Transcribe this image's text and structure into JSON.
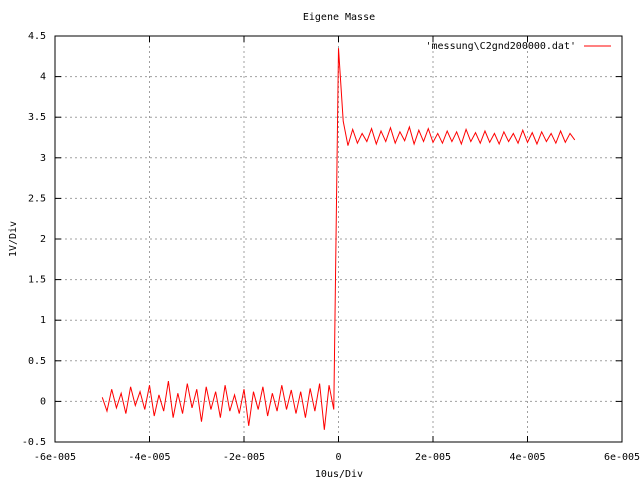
{
  "chart_data": {
    "type": "line",
    "title": "Eigene Masse",
    "xlabel": "10us/Div",
    "ylabel": "1V/Div",
    "x": [
      -5e-05,
      -4.9e-05,
      -4.8e-05,
      -4.7e-05,
      -4.6e-05,
      -4.5e-05,
      -4.4e-05,
      -4.3e-05,
      -4.2e-05,
      -4.1e-05,
      -4e-05,
      -3.9e-05,
      -3.8e-05,
      -3.7e-05,
      -3.6e-05,
      -3.5e-05,
      -3.4e-05,
      -3.3e-05,
      -3.2e-05,
      -3.1e-05,
      -3e-05,
      -2.9e-05,
      -2.8e-05,
      -2.7e-05,
      -2.6e-05,
      -2.5e-05,
      -2.4e-05,
      -2.3e-05,
      -2.2e-05,
      -2.1e-05,
      -2e-05,
      -1.9e-05,
      -1.8e-05,
      -1.7e-05,
      -1.6e-05,
      -1.5e-05,
      -1.4e-05,
      -1.3e-05,
      -1.2e-05,
      -1.1e-05,
      -1e-05,
      -9e-06,
      -8e-06,
      -7e-06,
      -6e-06,
      -5e-06,
      -4e-06,
      -3e-06,
      -2e-06,
      -1e-06,
      0,
      1e-06,
      2e-06,
      3e-06,
      4e-06,
      5e-06,
      6e-06,
      7e-06,
      8e-06,
      9e-06,
      1e-05,
      1.1e-05,
      1.2e-05,
      1.3e-05,
      1.4e-05,
      1.5e-05,
      1.6e-05,
      1.7e-05,
      1.8e-05,
      1.9e-05,
      2e-05,
      2.1e-05,
      2.2e-05,
      2.3e-05,
      2.4e-05,
      2.5e-05,
      2.6e-05,
      2.7e-05,
      2.8e-05,
      2.9e-05,
      3e-05,
      3.1e-05,
      3.2e-05,
      3.3e-05,
      3.4e-05,
      3.5e-05,
      3.6e-05,
      3.7e-05,
      3.8e-05,
      3.9e-05,
      4e-05,
      4.1e-05,
      4.2e-05,
      4.3e-05,
      4.4e-05,
      4.5e-05,
      4.6e-05,
      4.7e-05,
      4.8e-05,
      4.9e-05,
      5e-05
    ],
    "series": [
      {
        "name": "'messung\\C2gnd200000.dat'",
        "color": "#ff0000",
        "values": [
          0.05,
          -0.12,
          0.15,
          -0.08,
          0.1,
          -0.15,
          0.18,
          -0.05,
          0.12,
          -0.1,
          0.2,
          -0.18,
          0.08,
          -0.12,
          0.25,
          -0.2,
          0.1,
          -0.15,
          0.22,
          -0.08,
          0.15,
          -0.25,
          0.18,
          -0.1,
          0.12,
          -0.2,
          0.2,
          -0.12,
          0.08,
          -0.15,
          0.15,
          -0.3,
          0.12,
          -0.1,
          0.18,
          -0.18,
          0.1,
          -0.12,
          0.2,
          -0.1,
          0.14,
          -0.15,
          0.12,
          -0.2,
          0.16,
          -0.12,
          0.22,
          -0.35,
          0.2,
          -0.1,
          4.35,
          3.45,
          3.15,
          3.35,
          3.18,
          3.3,
          3.2,
          3.36,
          3.17,
          3.33,
          3.2,
          3.37,
          3.18,
          3.32,
          3.21,
          3.38,
          3.17,
          3.34,
          3.2,
          3.36,
          3.19,
          3.3,
          3.18,
          3.33,
          3.2,
          3.32,
          3.17,
          3.35,
          3.2,
          3.31,
          3.18,
          3.33,
          3.19,
          3.3,
          3.17,
          3.32,
          3.2,
          3.3,
          3.18,
          3.34,
          3.19,
          3.31,
          3.17,
          3.32,
          3.2,
          3.3,
          3.18,
          3.33,
          3.19,
          3.3,
          3.22
        ]
      }
    ],
    "xlim": [
      -6e-05,
      6e-05
    ],
    "xticks": [
      {
        "value": -6e-05,
        "label": "-6e-005"
      },
      {
        "value": -4e-05,
        "label": "-4e-005"
      },
      {
        "value": -2e-05,
        "label": "-2e-005"
      },
      0,
      {
        "value": 2e-05,
        "label": "2e-005"
      },
      {
        "value": 4e-05,
        "label": "4e-005"
      },
      {
        "value": 6e-05,
        "label": "6e-005"
      }
    ],
    "ylim": [
      -0.5,
      4.5
    ],
    "yticks": [
      -0.5,
      0,
      0.5,
      1,
      1.5,
      2,
      2.5,
      3,
      3.5,
      4,
      4.5
    ],
    "grid": true,
    "legend": "top-right"
  }
}
